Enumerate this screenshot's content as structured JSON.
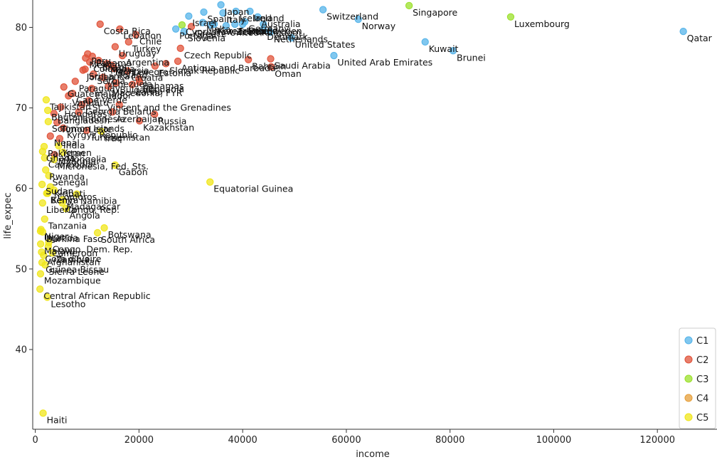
{
  "chart_data": {
    "type": "scatter",
    "xlabel": "income",
    "ylabel": "life_expec",
    "xlim": [
      -500,
      131500
    ],
    "ylim": [
      30.1,
      83.4
    ],
    "xticks": [
      0,
      20000,
      40000,
      60000,
      80000,
      100000,
      120000
    ],
    "yticks": [
      40,
      50,
      60,
      70,
      80
    ],
    "grid": false,
    "legend": {
      "placement": "bottom-right",
      "entries": [
        "C1",
        "C2",
        "C3",
        "C4",
        "C5"
      ]
    },
    "colors": {
      "C1": "#56b4e9",
      "C2": "#e0533a",
      "C3": "#9be02b",
      "C4": "#e69f3a",
      "C5": "#f0e61a"
    },
    "points": [
      {
        "x": 125000,
        "y": 79.5,
        "c": "C1",
        "label": "Qatar"
      },
      {
        "x": 91700,
        "y": 81.3,
        "c": "C3",
        "label": "Luxembourg"
      },
      {
        "x": 72100,
        "y": 82.7,
        "c": "C3",
        "label": "Singapore"
      },
      {
        "x": 80600,
        "y": 77.1,
        "c": "C1",
        "label": "Brunei"
      },
      {
        "x": 75200,
        "y": 78.2,
        "c": "C1",
        "label": "Kuwait"
      },
      {
        "x": 62300,
        "y": 81.0,
        "c": "C1",
        "label": "Norway"
      },
      {
        "x": 55500,
        "y": 82.2,
        "c": "C1",
        "label": "Switzerland"
      },
      {
        "x": 57600,
        "y": 76.5,
        "c": "C1",
        "label": "United Arab Emirates"
      },
      {
        "x": 49400,
        "y": 78.7,
        "c": "C1",
        "label": "United States"
      },
      {
        "x": 45400,
        "y": 76.1,
        "c": "C2",
        "label": "Saudi Arabia"
      },
      {
        "x": 45500,
        "y": 75.1,
        "c": "C2",
        "label": "Oman"
      },
      {
        "x": 41100,
        "y": 76.0,
        "c": "C2",
        "label": "Bahrain"
      },
      {
        "x": 45300,
        "y": 79.4,
        "c": "C1",
        "label": "Netherlands"
      },
      {
        "x": 44000,
        "y": 79.7,
        "c": "C1",
        "label": "Denmark"
      },
      {
        "x": 42900,
        "y": 81.3,
        "c": "C1",
        "label": "Australia"
      },
      {
        "x": 44000,
        "y": 80.4,
        "c": "C1",
        "label": "Sweden"
      },
      {
        "x": 38700,
        "y": 82.0,
        "c": "C1",
        "label": "Iceland"
      },
      {
        "x": 35800,
        "y": 82.8,
        "c": "C1",
        "label": "Japan"
      },
      {
        "x": 41400,
        "y": 82.0,
        "c": "C1",
        "label": "Ireland"
      },
      {
        "x": 40400,
        "y": 80.7,
        "c": "C1",
        "label": "Germany"
      },
      {
        "x": 36200,
        "y": 81.8,
        "c": "C1",
        "label": "Italy"
      },
      {
        "x": 32500,
        "y": 81.9,
        "c": "C1",
        "label": "Spain"
      },
      {
        "x": 29600,
        "y": 81.4,
        "c": "C1",
        "label": "Israel"
      },
      {
        "x": 32300,
        "y": 80.6,
        "c": "C1",
        "label": "Malta"
      },
      {
        "x": 33800,
        "y": 80.3,
        "c": "C1",
        "label": "New Zealand"
      },
      {
        "x": 38500,
        "y": 80.4,
        "c": "C1",
        "label": "France"
      },
      {
        "x": 36800,
        "y": 80.2,
        "c": "C1",
        "label": "United Kingdom"
      },
      {
        "x": 40000,
        "y": 80.4,
        "c": "C1",
        "label": "Finland"
      },
      {
        "x": 34500,
        "y": 80.4,
        "c": "C1",
        "label": "Korea, Rep."
      },
      {
        "x": 28300,
        "y": 80.3,
        "c": "C3",
        "label": "Cyprus"
      },
      {
        "x": 27100,
        "y": 79.8,
        "c": "C1",
        "label": "Portugal"
      },
      {
        "x": 28700,
        "y": 79.5,
        "c": "C1",
        "label": "Slovenia"
      },
      {
        "x": 30100,
        "y": 80.1,
        "c": "C2",
        "label": "Greece"
      },
      {
        "x": 28000,
        "y": 77.4,
        "c": "C2",
        "label": "Czech Republic"
      },
      {
        "x": 27500,
        "y": 75.8,
        "c": "C2",
        "label": "Antigua and Barbuda"
      },
      {
        "x": 25200,
        "y": 75.5,
        "c": "C2",
        "label": "Slovak Republic"
      },
      {
        "x": 23100,
        "y": 75.2,
        "c": "C2",
        "label": "Estonia"
      },
      {
        "x": 20000,
        "y": 73.6,
        "c": "C2",
        "label": "Bahamas"
      },
      {
        "x": 18700,
        "y": 72.9,
        "c": "C2",
        "label": "Latvia"
      },
      {
        "x": 20100,
        "y": 73.2,
        "c": "C2",
        "label": "Lithuania"
      },
      {
        "x": 23000,
        "y": 69.2,
        "c": "C2",
        "label": "Russia"
      },
      {
        "x": 20100,
        "y": 68.4,
        "c": "C2",
        "label": "Kazakhstan"
      },
      {
        "x": 12500,
        "y": 80.4,
        "c": "C2",
        "label": "Costa Rica"
      },
      {
        "x": 16300,
        "y": 79.8,
        "c": "C2",
        "label": "Lebanon"
      },
      {
        "x": 19400,
        "y": 79.1,
        "c": "C2",
        "label": "Chile"
      },
      {
        "x": 18000,
        "y": 78.2,
        "c": "C2",
        "label": "Turkey"
      },
      {
        "x": 15400,
        "y": 77.6,
        "c": "C2",
        "label": "Uruguay"
      },
      {
        "x": 10100,
        "y": 76.7,
        "c": "C2",
        "label": "Peru"
      },
      {
        "x": 11000,
        "y": 76.4,
        "c": "C2",
        "label": "Panama"
      },
      {
        "x": 9700,
        "y": 76.2,
        "c": "C2",
        "label": "Mexico"
      },
      {
        "x": 16800,
        "y": 76.5,
        "c": "C2",
        "label": "Argentina"
      },
      {
        "x": 12200,
        "y": 75.9,
        "c": "C2",
        "label": "Brazil"
      },
      {
        "x": 10500,
        "y": 75.7,
        "c": "C2",
        "label": "Colombia"
      },
      {
        "x": 13800,
        "y": 75.5,
        "c": "C2",
        "label": "Malaysia"
      },
      {
        "x": 14700,
        "y": 75.3,
        "c": "C2",
        "label": "Montenegro"
      },
      {
        "x": 9600,
        "y": 74.8,
        "c": "C2",
        "label": "Sri Lanka"
      },
      {
        "x": 9200,
        "y": 74.7,
        "c": "C2",
        "label": "Jordan"
      },
      {
        "x": 15200,
        "y": 74.9,
        "c": "C2",
        "label": "Poland"
      },
      {
        "x": 17800,
        "y": 74.6,
        "c": "C2",
        "label": "Croatia"
      },
      {
        "x": 11200,
        "y": 74.2,
        "c": "C2",
        "label": "Serbia"
      },
      {
        "x": 7700,
        "y": 73.3,
        "c": "C2",
        "label": "Paraguay"
      },
      {
        "x": 13100,
        "y": 73.8,
        "c": "C2",
        "label": "Venezuela"
      },
      {
        "x": 15600,
        "y": 73.1,
        "c": "C2",
        "label": "Bulgaria"
      },
      {
        "x": 14100,
        "y": 72.7,
        "c": "C2",
        "label": "Macedonia, FYR"
      },
      {
        "x": 10900,
        "y": 72.4,
        "c": "C2",
        "label": "Ecuador"
      },
      {
        "x": 7200,
        "y": 71.8,
        "c": "C2",
        "label": "Cape Verde"
      },
      {
        "x": 6400,
        "y": 71.5,
        "c": "C2",
        "label": "Vanuatu"
      },
      {
        "x": 5500,
        "y": 72.6,
        "c": "C2",
        "label": "Guatemala"
      },
      {
        "x": 4900,
        "y": 70.1,
        "c": "C2",
        "label": "Honduras"
      },
      {
        "x": 10300,
        "y": 70.9,
        "c": "C2",
        "label": "St. Vincent and the Grenadines"
      },
      {
        "x": 9000,
        "y": 70.4,
        "c": "C2",
        "label": "Georgia"
      },
      {
        "x": 3600,
        "y": 69.3,
        "c": "C2",
        "label": "Bangladesh"
      },
      {
        "x": 16200,
        "y": 70.4,
        "c": "C2",
        "label": "Belarus"
      },
      {
        "x": 14900,
        "y": 69.5,
        "c": "C2",
        "label": "Azerbaijan"
      },
      {
        "x": 8400,
        "y": 69.5,
        "c": "C2",
        "label": "Indonesia"
      },
      {
        "x": 4200,
        "y": 68.2,
        "c": "C2",
        "label": "Timor-Leste"
      },
      {
        "x": 5400,
        "y": 67.5,
        "c": "C2",
        "label": "Kyrgyz Republic"
      },
      {
        "x": 9900,
        "y": 67.2,
        "c": "C2",
        "label": "Turkmenistan"
      },
      {
        "x": 2900,
        "y": 66.5,
        "c": "C2",
        "label": "Nepal"
      },
      {
        "x": 4700,
        "y": 66.2,
        "c": "C2",
        "label": "India"
      },
      {
        "x": 3700,
        "y": 64.2,
        "c": "C2",
        "label": "Myanmar"
      },
      {
        "x": 2100,
        "y": 71.0,
        "c": "C5",
        "label": "Tajikistan"
      },
      {
        "x": 2400,
        "y": 69.7,
        "c": "C5",
        "label": "Bhutan"
      },
      {
        "x": 2500,
        "y": 68.3,
        "c": "C5",
        "label": "Solomon Islands"
      },
      {
        "x": 12700,
        "y": 67.1,
        "c": "C5",
        "label": "Iraq"
      },
      {
        "x": 4500,
        "y": 65.3,
        "c": "C5",
        "label": "Yemen"
      },
      {
        "x": 1700,
        "y": 65.2,
        "c": "C5",
        "label": "Pakistan"
      },
      {
        "x": 5300,
        "y": 64.5,
        "c": "C5",
        "label": "Mongolia"
      },
      {
        "x": 1800,
        "y": 63.8,
        "c": "C5",
        "label": "Cambodia"
      },
      {
        "x": 3600,
        "y": 63.6,
        "c": "C5",
        "label": "Micronesia, Fed. Sts."
      },
      {
        "x": 1400,
        "y": 64.6,
        "c": "C5",
        "label": "Ghana"
      },
      {
        "x": 2000,
        "y": 62.3,
        "c": "C5",
        "label": "Rwanda"
      },
      {
        "x": 2600,
        "y": 61.6,
        "c": "C5",
        "label": "Senegal"
      },
      {
        "x": 15400,
        "y": 62.9,
        "c": "C5",
        "label": "Gabon"
      },
      {
        "x": 2900,
        "y": 60.2,
        "c": "C5",
        "label": "Kiribati"
      },
      {
        "x": 2400,
        "y": 59.4,
        "c": "C5",
        "label": "Kenya"
      },
      {
        "x": 1300,
        "y": 60.5,
        "c": "C5",
        "label": "Sudan"
      },
      {
        "x": 3600,
        "y": 59.8,
        "c": "C5",
        "label": "Comoros"
      },
      {
        "x": 2200,
        "y": 59.4,
        "c": "C5",
        "label": "Benin"
      },
      {
        "x": 1400,
        "y": 58.2,
        "c": "C5",
        "label": "Liberia"
      },
      {
        "x": 5300,
        "y": 58.6,
        "c": "C5",
        "label": "Madagascar"
      },
      {
        "x": 5200,
        "y": 58.2,
        "c": "C5",
        "label": "Congo, Rep."
      },
      {
        "x": 5900,
        "y": 57.5,
        "c": "C5",
        "label": "Angola"
      },
      {
        "x": 1800,
        "y": 56.2,
        "c": "C5",
        "label": "Tanzania"
      },
      {
        "x": 33700,
        "y": 60.8,
        "c": "C5",
        "label": "Equatorial Guinea"
      },
      {
        "x": 8000,
        "y": 59.3,
        "c": "C5",
        "label": "Namibia"
      },
      {
        "x": 1100,
        "y": 54.9,
        "c": "C5",
        "label": "Niger"
      },
      {
        "x": 1000,
        "y": 54.7,
        "c": "C5",
        "label": "Uganda"
      },
      {
        "x": 1400,
        "y": 54.6,
        "c": "C5",
        "label": "Burkina Faso"
      },
      {
        "x": 2600,
        "y": 53.3,
        "c": "C5",
        "label": "Congo, Dem. Rep."
      },
      {
        "x": 2500,
        "y": 52.8,
        "c": "C5",
        "label": "Cameroon"
      },
      {
        "x": 13300,
        "y": 55.1,
        "c": "C5",
        "label": "Botswana"
      },
      {
        "x": 1200,
        "y": 52.1,
        "c": "C5",
        "label": "Cote d'Ivoire"
      },
      {
        "x": 1600,
        "y": 51.7,
        "c": "C5",
        "label": "Afghanistan"
      },
      {
        "x": 1300,
        "y": 50.8,
        "c": "C5",
        "label": "Guinea-Bissau"
      },
      {
        "x": 1900,
        "y": 50.5,
        "c": "C5",
        "label": "Sierra Leone"
      },
      {
        "x": 1000,
        "y": 49.4,
        "c": "C5",
        "label": "Mozambique"
      },
      {
        "x": 12000,
        "y": 54.5,
        "c": "C5",
        "label": "South Africa"
      },
      {
        "x": 1030,
        "y": 53.1,
        "c": "C5",
        "label": "Malawi"
      },
      {
        "x": 3300,
        "y": 52.0,
        "c": "C5",
        "label": "Zambia"
      },
      {
        "x": 900,
        "y": 47.5,
        "c": "C5",
        "label": "Central African Republic"
      },
      {
        "x": 2300,
        "y": 46.5,
        "c": "C5",
        "label": "Lesotho"
      },
      {
        "x": 1500,
        "y": 32.1,
        "c": "C5",
        "label": "Haiti"
      }
    ]
  }
}
